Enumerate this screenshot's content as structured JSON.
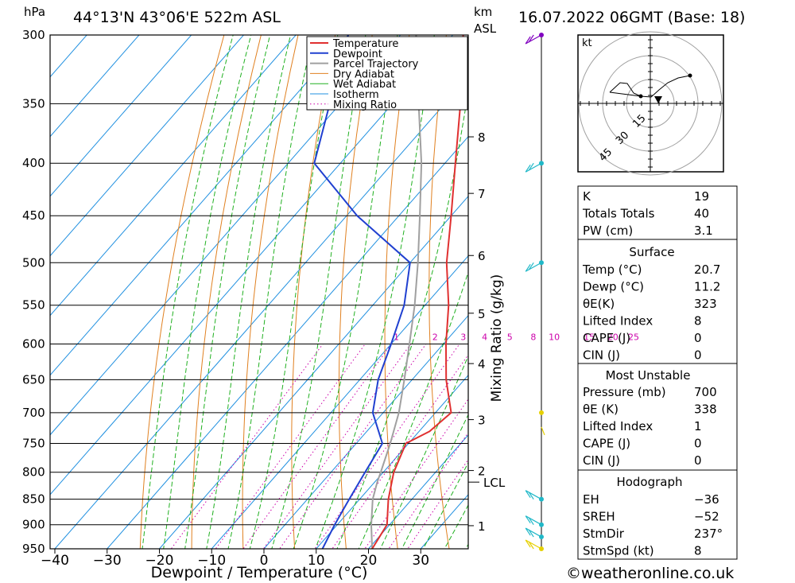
{
  "header": {
    "pressure_unit": "hPa",
    "location": "44°13'N  43°06'E  522m  ASL",
    "height_unit_1": "km",
    "height_unit_2": "ASL",
    "datetime": "16.07.2022  06GMT  (Base: 18)"
  },
  "axes": {
    "xlabel": "Dewpoint / Temperature (°C)",
    "mixing_ratio_label": "Mixing Ratio (g/kg)",
    "lcl_label": "LCL"
  },
  "chart_data": {
    "type": "line",
    "subtype": "skew-T log-P diagram",
    "pressure_levels_hPa": [
      300,
      350,
      400,
      450,
      500,
      550,
      600,
      650,
      700,
      750,
      800,
      850,
      900,
      950
    ],
    "temperature_ticks_C": [
      -40,
      -30,
      -20,
      -10,
      0,
      10,
      20,
      30
    ],
    "km_ticks": [
      {
        "km": 8,
        "p": 377
      },
      {
        "km": 7,
        "p": 428
      },
      {
        "km": 6,
        "p": 492
      },
      {
        "km": 5,
        "p": 560
      },
      {
        "km": 4,
        "p": 627
      },
      {
        "km": 3,
        "p": 711
      },
      {
        "km": 2,
        "p": 797
      },
      {
        "km": 1,
        "p": 902
      }
    ],
    "lcl_p": 818,
    "mixing_ratio_labels": [
      "1",
      "2",
      "3",
      "4",
      "5",
      "8",
      "10",
      "15",
      "20",
      "25"
    ],
    "mixing_ratio_label_x": [
      -9.0,
      -1.6,
      3.8,
      7.9,
      12.7,
      17.2,
      21.2,
      27.9,
      32.4,
      36.4
    ],
    "mixing_ratio_label_p": 600,
    "legend": [
      "Temperature",
      "Dewpoint",
      "Parcel Trajectory",
      "Dry Adiabat",
      "Wet Adiabat",
      "Isotherm",
      "Mixing Ratio"
    ],
    "series": [
      {
        "name": "Temperature",
        "color": "#e03030",
        "points": [
          [
            950,
            20.7
          ],
          [
            900,
            19.5
          ],
          [
            850,
            15.5
          ],
          [
            800,
            12
          ],
          [
            750,
            9.5
          ],
          [
            730,
            12
          ],
          [
            700,
            13
          ],
          [
            650,
            6.5
          ],
          [
            600,
            0.5
          ],
          [
            550,
            -5.5
          ],
          [
            500,
            -13
          ],
          [
            450,
            -20
          ],
          [
            400,
            -28
          ],
          [
            350,
            -37
          ],
          [
            300,
            -48
          ]
        ]
      },
      {
        "name": "Dewpoint",
        "color": "#2040d0",
        "points": [
          [
            950,
            11.2
          ],
          [
            900,
            9.5
          ],
          [
            850,
            8
          ],
          [
            800,
            6.5
          ],
          [
            750,
            5
          ],
          [
            700,
            -2
          ],
          [
            650,
            -6.5
          ],
          [
            600,
            -10
          ],
          [
            550,
            -14
          ],
          [
            500,
            -20
          ],
          [
            450,
            -38
          ],
          [
            400,
            -55
          ],
          [
            350,
            -62
          ],
          [
            300,
            -70
          ]
        ]
      },
      {
        "name": "Parcel Trajectory",
        "color": "#a0a0a0",
        "points": [
          [
            950,
            20.7
          ],
          [
            900,
            16.5
          ],
          [
            850,
            12.5
          ],
          [
            818,
            10.5
          ],
          [
            800,
            9.5
          ],
          [
            750,
            6.5
          ],
          [
            700,
            3
          ],
          [
            650,
            -1.5
          ],
          [
            600,
            -6.5
          ],
          [
            550,
            -12
          ],
          [
            500,
            -18.5
          ],
          [
            450,
            -26
          ],
          [
            400,
            -34.5
          ],
          [
            350,
            -45
          ],
          [
            300,
            -57
          ]
        ]
      }
    ],
    "hodograph": {
      "unit": "kt",
      "rings": [
        "15",
        "30",
        "45"
      ]
    },
    "wind_barb_levels_hPa": [
      300,
      400,
      500,
      700,
      850,
      900,
      925,
      950
    ]
  },
  "indices": {
    "rows": [
      [
        "K",
        "19"
      ],
      [
        "Totals Totals",
        "40"
      ],
      [
        "PW (cm)",
        "3.1"
      ]
    ],
    "surface": {
      "title": "Surface",
      "rows": [
        [
          "Temp (°C)",
          "20.7"
        ],
        [
          "Dewp (°C)",
          "11.2"
        ],
        [
          "θE(K)",
          "323"
        ],
        [
          "Lifted Index",
          "8"
        ],
        [
          "CAPE (J)",
          "0"
        ],
        [
          "CIN (J)",
          "0"
        ]
      ]
    },
    "most_unstable": {
      "title": "Most Unstable",
      "rows": [
        [
          "Pressure (mb)",
          "700"
        ],
        [
          "θE (K)",
          "338"
        ],
        [
          "Lifted Index",
          "1"
        ],
        [
          "CAPE (J)",
          "0"
        ],
        [
          "CIN (J)",
          "0"
        ]
      ]
    },
    "hodograph": {
      "title": "Hodograph",
      "rows": [
        [
          "EH",
          "−36"
        ],
        [
          "SREH",
          "−52"
        ],
        [
          "StmDir",
          "237°"
        ],
        [
          "StmSpd (kt)",
          "8"
        ]
      ]
    }
  },
  "footer": {
    "copyright": "©weatheronline.co.uk"
  },
  "colors": {
    "temperature": "#e03030",
    "dewpoint": "#2040d0",
    "parcel": "#a0a0a0",
    "dry_adiabat": "#e08020",
    "wet_adiabat": "#20b020",
    "isotherm": "#2090e0",
    "mixing_ratio": "#cc00aa"
  }
}
